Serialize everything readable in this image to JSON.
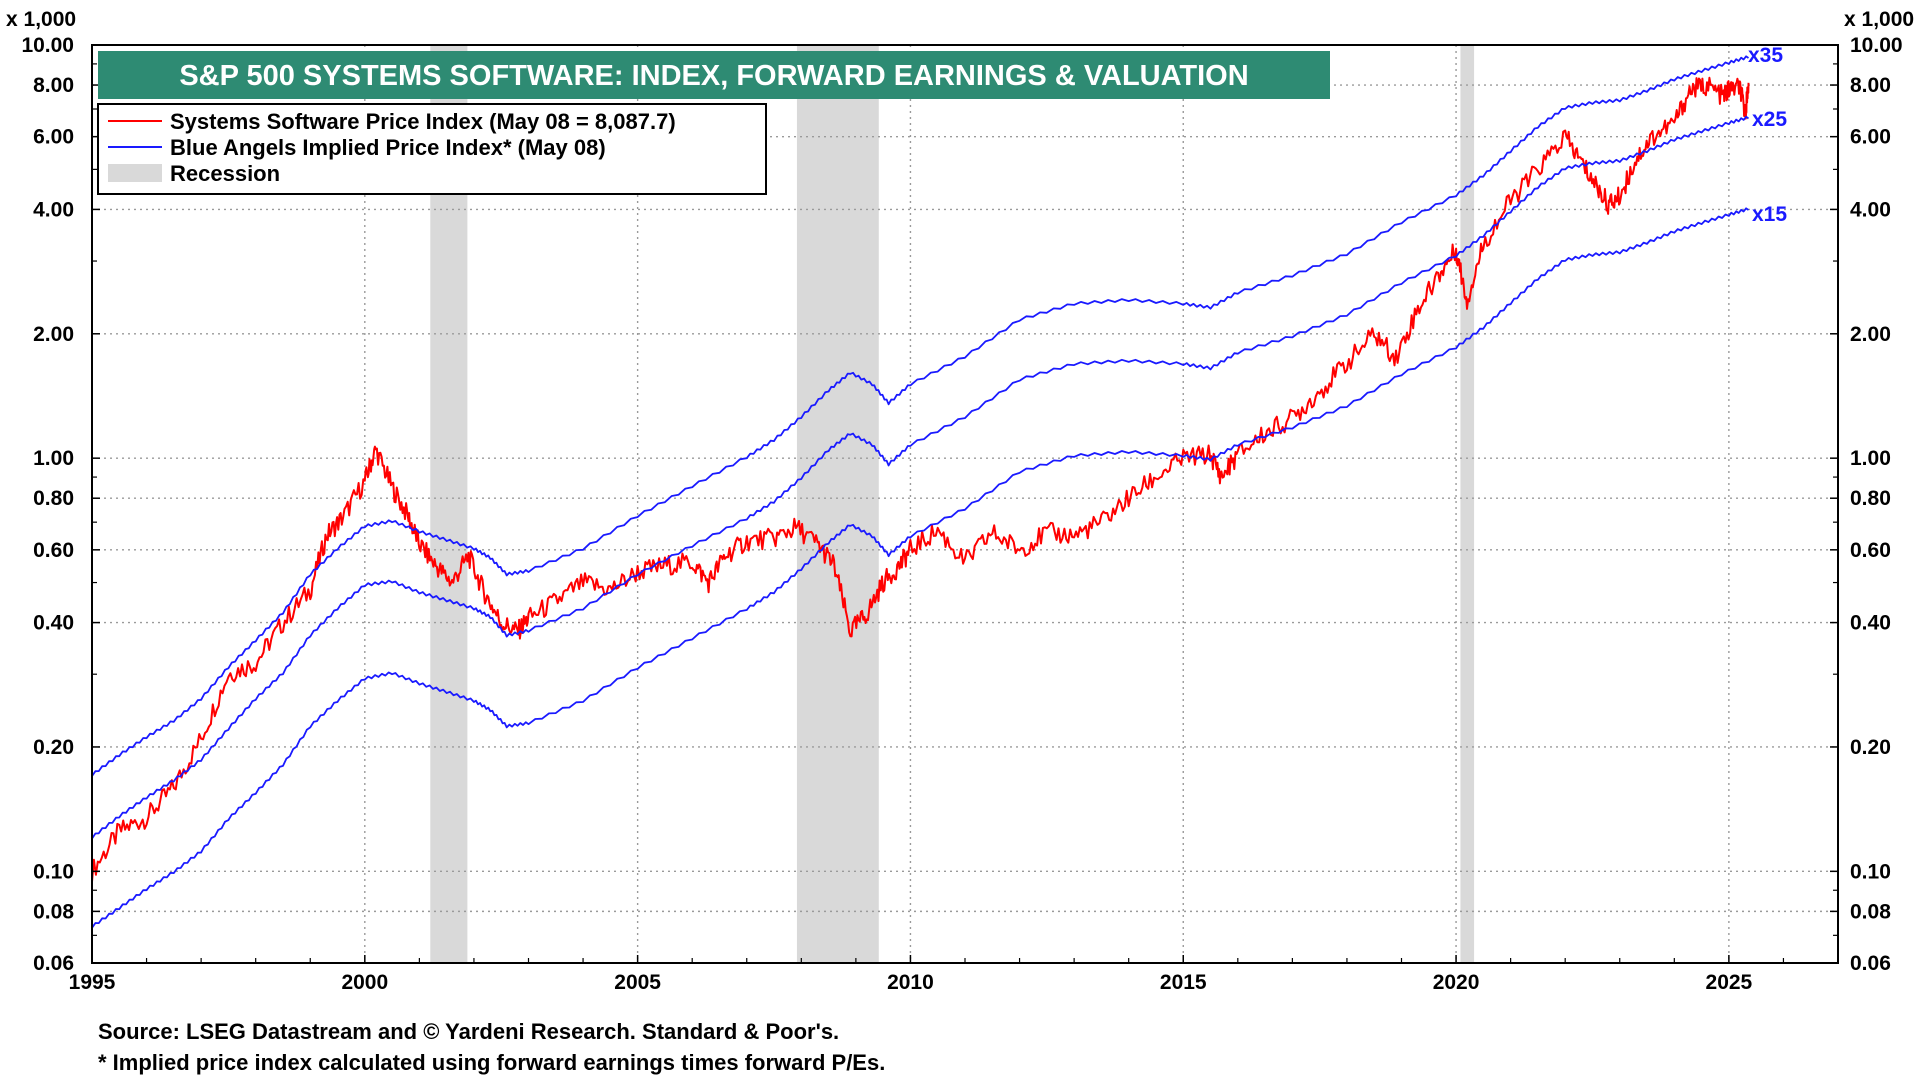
{
  "chart_data": {
    "type": "line",
    "title": "S&P 500 SYSTEMS SOFTWARE: INDEX, FORWARD EARNINGS & VALUATION",
    "y_unit_label": "x 1,000",
    "y_scale": "log",
    "ylim": [
      0.06,
      10.0
    ],
    "xlim": [
      1995.0,
      2027.0
    ],
    "x_ticks": [
      1995,
      2000,
      2005,
      2010,
      2015,
      2020,
      2025
    ],
    "x_tick_labels": [
      "1995",
      "2000",
      "2005",
      "2010",
      "2015",
      "2020",
      "2025"
    ],
    "y_ticks": [
      0.06,
      0.08,
      0.1,
      0.2,
      0.4,
      0.6,
      0.8,
      1.0,
      2.0,
      4.0,
      6.0,
      8.0,
      10.0
    ],
    "y_tick_labels": [
      "0.06",
      "0.08",
      "0.10",
      "0.20",
      "0.40",
      "0.60",
      "0.80",
      "1.00",
      "2.00",
      "4.00",
      "6.00",
      "8.00",
      "10.00"
    ],
    "legend": [
      {
        "label": "Systems Software Price Index (May 08 = 8,087.7)",
        "color": "#ff0000",
        "kind": "line"
      },
      {
        "label": "Blue Angels Implied Price Index* (May 08)",
        "color": "#1a1aff",
        "kind": "line"
      },
      {
        "label": "Recession",
        "color": "#d9d9d9",
        "kind": "box"
      }
    ],
    "recessions": [
      {
        "start": 2001.2,
        "end": 2001.88
      },
      {
        "start": 2007.92,
        "end": 2009.42
      },
      {
        "start": 2020.08,
        "end": 2020.33
      }
    ],
    "series": [
      {
        "name": "Systems Software Price Index",
        "color": "#ff0000",
        "x": [
          1995.0,
          1995.5,
          1996.0,
          1996.5,
          1997.0,
          1997.5,
          1998.0,
          1998.5,
          1999.0,
          1999.3,
          1999.6,
          2000.0,
          2000.2,
          2000.5,
          2000.8,
          2001.0,
          2001.3,
          2001.6,
          2001.9,
          2002.2,
          2002.5,
          2002.8,
          2003.0,
          2003.5,
          2004.0,
          2004.5,
          2005.0,
          2005.5,
          2006.0,
          2006.3,
          2006.6,
          2007.0,
          2007.5,
          2007.9,
          2008.3,
          2008.6,
          2008.9,
          2009.2,
          2009.5,
          2009.8,
          2010.0,
          2010.5,
          2011.0,
          2011.5,
          2012.0,
          2012.5,
          2013.0,
          2013.5,
          2014.0,
          2014.5,
          2015.0,
          2015.5,
          2015.7,
          2016.0,
          2016.5,
          2017.0,
          2017.5,
          2018.0,
          2018.5,
          2018.9,
          2019.3,
          2019.7,
          2020.0,
          2020.2,
          2020.5,
          2021.0,
          2021.5,
          2022.0,
          2022.3,
          2022.6,
          2022.8,
          2023.0,
          2023.3,
          2023.6,
          2024.0,
          2024.3,
          2024.6,
          2024.9,
          2025.0,
          2025.2,
          2025.3,
          2025.36
        ],
        "values": [
          0.1,
          0.125,
          0.135,
          0.16,
          0.21,
          0.3,
          0.32,
          0.4,
          0.48,
          0.65,
          0.72,
          0.88,
          1.05,
          0.85,
          0.72,
          0.62,
          0.55,
          0.5,
          0.58,
          0.47,
          0.4,
          0.38,
          0.41,
          0.45,
          0.5,
          0.48,
          0.53,
          0.55,
          0.56,
          0.5,
          0.58,
          0.63,
          0.64,
          0.68,
          0.62,
          0.55,
          0.38,
          0.42,
          0.5,
          0.55,
          0.6,
          0.67,
          0.56,
          0.66,
          0.6,
          0.66,
          0.65,
          0.7,
          0.8,
          0.9,
          1.0,
          1.02,
          0.9,
          1.02,
          1.15,
          1.25,
          1.45,
          1.7,
          2.0,
          1.75,
          2.3,
          2.8,
          3.2,
          2.4,
          3.3,
          4.2,
          5.0,
          6.0,
          5.2,
          4.5,
          4.1,
          4.3,
          5.3,
          6.0,
          6.5,
          7.8,
          8.0,
          7.5,
          7.8,
          7.9,
          6.8,
          8.1
        ]
      },
      {
        "name": "Blue Angels Implied Price Index x35",
        "label": "x35",
        "color": "#1a1aff",
        "x": [
          1995.0,
          1995.5,
          1996.0,
          1996.5,
          1997.0,
          1997.5,
          1998.0,
          1998.5,
          1999.0,
          1999.5,
          2000.0,
          2000.5,
          2001.0,
          2001.5,
          2002.0,
          2002.3,
          2002.6,
          2003.0,
          2004.0,
          2005.0,
          2006.0,
          2007.0,
          2007.5,
          2008.0,
          2008.5,
          2008.9,
          2009.3,
          2009.6,
          2010.0,
          2011.0,
          2012.0,
          2013.0,
          2014.0,
          2015.0,
          2015.5,
          2016.0,
          2017.0,
          2018.0,
          2019.0,
          2020.0,
          2020.5,
          2021.0,
          2021.5,
          2022.0,
          2022.5,
          2023.0,
          2023.5,
          2024.0,
          2024.5,
          2025.0,
          2025.36
        ],
        "values": [
          0.17,
          0.19,
          0.21,
          0.23,
          0.26,
          0.31,
          0.36,
          0.42,
          0.52,
          0.6,
          0.68,
          0.7,
          0.66,
          0.63,
          0.6,
          0.57,
          0.52,
          0.53,
          0.6,
          0.72,
          0.85,
          1.0,
          1.1,
          1.25,
          1.45,
          1.6,
          1.5,
          1.35,
          1.5,
          1.75,
          2.15,
          2.35,
          2.4,
          2.35,
          2.3,
          2.5,
          2.75,
          3.1,
          3.7,
          4.3,
          4.8,
          5.5,
          6.3,
          7.0,
          7.2,
          7.3,
          7.7,
          8.2,
          8.6,
          9.0,
          9.3
        ]
      },
      {
        "name": "Blue Angels Implied Price Index x25",
        "label": "x25",
        "color": "#1a1aff",
        "x": [
          1995.0,
          1995.5,
          1996.0,
          1996.5,
          1997.0,
          1997.5,
          1998.0,
          1998.5,
          1999.0,
          1999.5,
          2000.0,
          2000.5,
          2001.0,
          2001.5,
          2002.0,
          2002.3,
          2002.6,
          2003.0,
          2004.0,
          2005.0,
          2006.0,
          2007.0,
          2007.5,
          2008.0,
          2008.5,
          2008.9,
          2009.3,
          2009.6,
          2010.0,
          2011.0,
          2012.0,
          2013.0,
          2014.0,
          2015.0,
          2015.5,
          2016.0,
          2017.0,
          2018.0,
          2019.0,
          2020.0,
          2020.5,
          2021.0,
          2021.5,
          2022.0,
          2022.5,
          2023.0,
          2023.5,
          2024.0,
          2024.5,
          2025.0,
          2025.36
        ],
        "values": [
          0.12,
          0.135,
          0.15,
          0.165,
          0.185,
          0.22,
          0.26,
          0.3,
          0.37,
          0.43,
          0.49,
          0.5,
          0.47,
          0.45,
          0.43,
          0.41,
          0.37,
          0.38,
          0.43,
          0.52,
          0.61,
          0.71,
          0.78,
          0.89,
          1.04,
          1.14,
          1.07,
          0.96,
          1.07,
          1.25,
          1.54,
          1.68,
          1.71,
          1.68,
          1.64,
          1.79,
          1.96,
          2.21,
          2.64,
          3.07,
          3.43,
          3.93,
          4.5,
          5.0,
          5.14,
          5.21,
          5.5,
          5.86,
          6.14,
          6.43,
          6.64
        ]
      },
      {
        "name": "Blue Angels Implied Price Index x15",
        "label": "x15",
        "color": "#1a1aff",
        "x": [
          1995.0,
          1995.5,
          1996.0,
          1996.5,
          1997.0,
          1997.5,
          1998.0,
          1998.5,
          1999.0,
          1999.5,
          2000.0,
          2000.5,
          2001.0,
          2001.5,
          2002.0,
          2002.3,
          2002.6,
          2003.0,
          2004.0,
          2005.0,
          2006.0,
          2007.0,
          2007.5,
          2008.0,
          2008.5,
          2008.9,
          2009.3,
          2009.6,
          2010.0,
          2011.0,
          2012.0,
          2013.0,
          2014.0,
          2015.0,
          2015.5,
          2016.0,
          2017.0,
          2018.0,
          2019.0,
          2020.0,
          2020.5,
          2021.0,
          2021.5,
          2022.0,
          2022.5,
          2023.0,
          2023.5,
          2024.0,
          2024.5,
          2025.0,
          2025.36
        ],
        "values": [
          0.073,
          0.081,
          0.09,
          0.099,
          0.111,
          0.133,
          0.154,
          0.18,
          0.223,
          0.257,
          0.291,
          0.3,
          0.283,
          0.27,
          0.257,
          0.244,
          0.223,
          0.227,
          0.257,
          0.309,
          0.364,
          0.429,
          0.471,
          0.536,
          0.621,
          0.686,
          0.643,
          0.579,
          0.643,
          0.75,
          0.921,
          1.007,
          1.029,
          1.007,
          0.986,
          1.071,
          1.179,
          1.329,
          1.586,
          1.843,
          2.057,
          2.357,
          2.7,
          3.0,
          3.086,
          3.129,
          3.3,
          3.514,
          3.686,
          3.857,
          3.986
        ]
      }
    ]
  },
  "footnotes": {
    "source": "Source: LSEG Datastream and © Yardeni Research. Standard & Poor's.",
    "note": "* Implied price index calculated using forward earnings times forward P/Es."
  }
}
